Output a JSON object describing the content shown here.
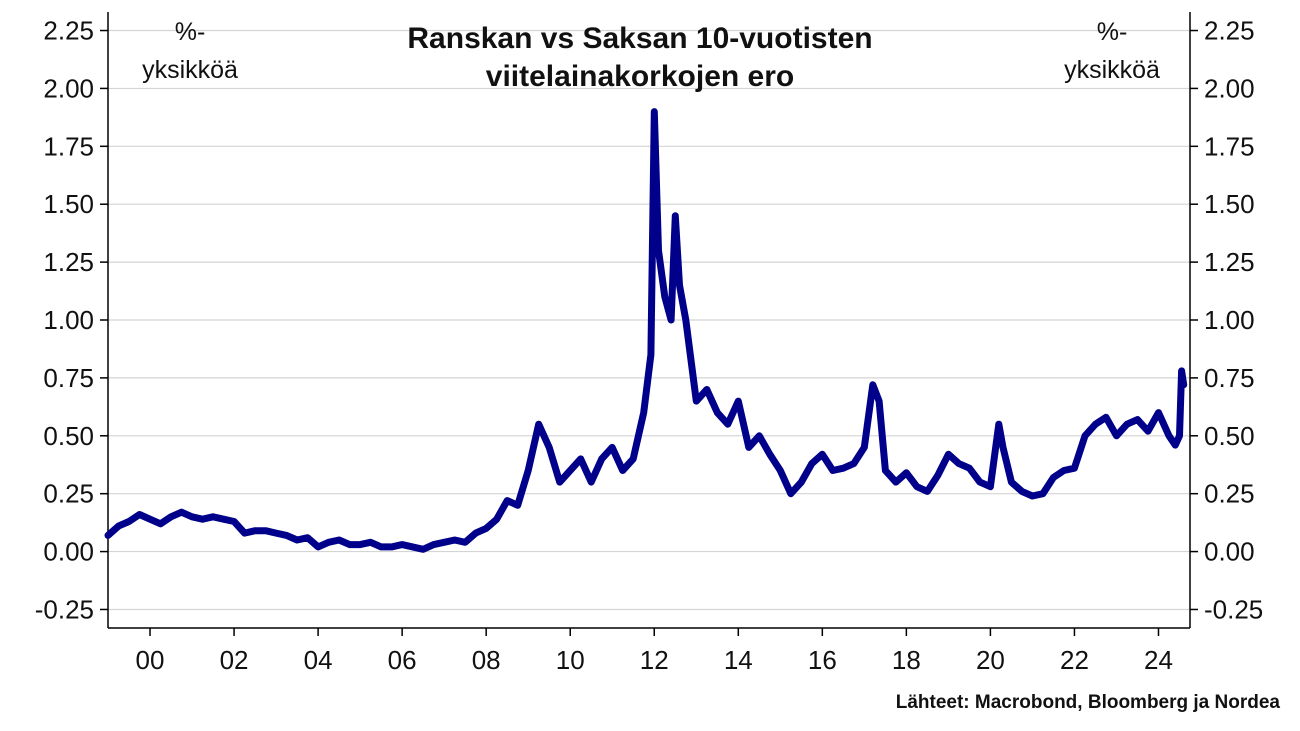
{
  "chart_data": {
    "type": "line",
    "title": [
      "Ranskan vs Saksan 10-vuotisten",
      "viitelainakorkojen ero"
    ],
    "unit_left": [
      "%-",
      "yksikköä"
    ],
    "unit_right": [
      "%-",
      "yksikköä"
    ],
    "source": "Lähteet: Macrobond, Bloomberg ja Nordea",
    "y_ticks": [
      "2.25",
      "2.00",
      "1.75",
      "1.50",
      "1.25",
      "1.00",
      "0.75",
      "0.50",
      "0.25",
      "0.00",
      "-0.25"
    ],
    "y_tick_values": [
      2.25,
      2.0,
      1.75,
      1.5,
      1.25,
      1.0,
      0.75,
      0.5,
      0.25,
      0.0,
      -0.25
    ],
    "x_ticks": [
      "00",
      "02",
      "04",
      "06",
      "08",
      "10",
      "12",
      "14",
      "16",
      "18",
      "20",
      "22",
      "24"
    ],
    "x_tick_values": [
      2000,
      2002,
      2004,
      2006,
      2008,
      2010,
      2012,
      2014,
      2016,
      2018,
      2020,
      2022,
      2024
    ],
    "xlim": [
      1999.0,
      2024.75
    ],
    "ylim": [
      -0.33,
      2.33
    ],
    "grid": true,
    "series_color": "#00008B",
    "series": [
      {
        "x": [
          1999.0,
          1999.25,
          1999.5,
          1999.75,
          2000.0,
          2000.25,
          2000.5,
          2000.75,
          2001.0,
          2001.25,
          2001.5,
          2001.75,
          2002.0,
          2002.25,
          2002.5,
          2002.75,
          2003.0,
          2003.25,
          2003.5,
          2003.75,
          2004.0,
          2004.25,
          2004.5,
          2004.75,
          2005.0,
          2005.25,
          2005.5,
          2005.75,
          2006.0,
          2006.25,
          2006.5,
          2006.75,
          2007.0,
          2007.25,
          2007.5,
          2007.75,
          2008.0,
          2008.25,
          2008.5,
          2008.75,
          2009.0,
          2009.25,
          2009.5,
          2009.75,
          2010.0,
          2010.25,
          2010.5,
          2010.75,
          2011.0,
          2011.25,
          2011.5,
          2011.75,
          2011.92,
          2012.0,
          2012.1,
          2012.25,
          2012.4,
          2012.5,
          2012.6,
          2012.75,
          2013.0,
          2013.25,
          2013.5,
          2013.75,
          2014.0,
          2014.25,
          2014.5,
          2014.75,
          2015.0,
          2015.25,
          2015.5,
          2015.75,
          2016.0,
          2016.25,
          2016.5,
          2016.75,
          2017.0,
          2017.2,
          2017.35,
          2017.5,
          2017.75,
          2018.0,
          2018.25,
          2018.5,
          2018.75,
          2019.0,
          2019.25,
          2019.5,
          2019.75,
          2020.0,
          2020.2,
          2020.3,
          2020.5,
          2020.75,
          2021.0,
          2021.25,
          2021.5,
          2021.75,
          2022.0,
          2022.25,
          2022.5,
          2022.75,
          2023.0,
          2023.25,
          2023.5,
          2023.75,
          2024.0,
          2024.25,
          2024.4,
          2024.5,
          2024.55,
          2024.6
        ],
        "y": [
          0.07,
          0.11,
          0.13,
          0.16,
          0.14,
          0.12,
          0.15,
          0.17,
          0.15,
          0.14,
          0.15,
          0.14,
          0.13,
          0.08,
          0.09,
          0.09,
          0.08,
          0.07,
          0.05,
          0.06,
          0.02,
          0.04,
          0.05,
          0.03,
          0.03,
          0.04,
          0.02,
          0.02,
          0.03,
          0.02,
          0.01,
          0.03,
          0.04,
          0.05,
          0.04,
          0.08,
          0.1,
          0.14,
          0.22,
          0.2,
          0.35,
          0.55,
          0.45,
          0.3,
          0.35,
          0.4,
          0.3,
          0.4,
          0.45,
          0.35,
          0.4,
          0.6,
          0.85,
          1.9,
          1.3,
          1.1,
          1.0,
          1.45,
          1.15,
          1.0,
          0.65,
          0.7,
          0.6,
          0.55,
          0.65,
          0.45,
          0.5,
          0.42,
          0.35,
          0.25,
          0.3,
          0.38,
          0.42,
          0.35,
          0.36,
          0.38,
          0.45,
          0.72,
          0.65,
          0.35,
          0.3,
          0.34,
          0.28,
          0.26,
          0.33,
          0.42,
          0.38,
          0.36,
          0.3,
          0.28,
          0.55,
          0.45,
          0.3,
          0.26,
          0.24,
          0.25,
          0.32,
          0.35,
          0.36,
          0.5,
          0.55,
          0.58,
          0.5,
          0.55,
          0.57,
          0.52,
          0.6,
          0.5,
          0.46,
          0.5,
          0.78,
          0.72
        ]
      }
    ]
  }
}
